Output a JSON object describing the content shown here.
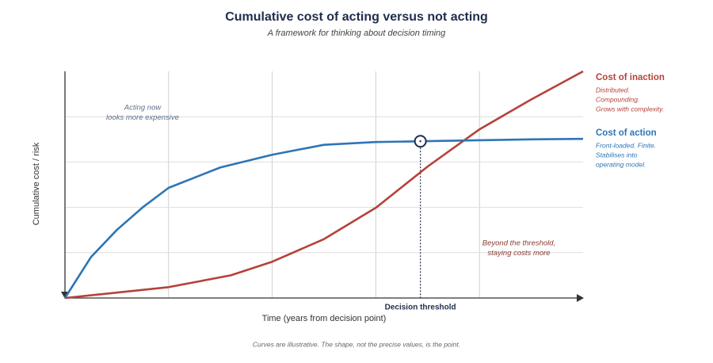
{
  "chart_data": {
    "type": "line",
    "title": "Cumulative cost of acting versus not acting",
    "subtitle": "A framework for thinking about decision timing",
    "xlabel": "Time (years from decision point)",
    "ylabel": "Cumulative cost / risk",
    "xlim": [
      0,
      5
    ],
    "ylim": [
      0,
      5
    ],
    "xticks": [
      1,
      2,
      3,
      4
    ],
    "yticks": [
      1,
      2,
      3,
      4
    ],
    "grid": true,
    "series": [
      {
        "name": "Cost of inaction",
        "color": "#b5423a",
        "description": [
          "Distributed.",
          "Compounding.",
          "Grows with complexity."
        ],
        "x": [
          0,
          1,
          1.6,
          2,
          2.5,
          3,
          3.5,
          4,
          4.5,
          5
        ],
        "values": [
          0,
          0.24,
          0.5,
          0.8,
          1.3,
          1.99,
          2.9,
          3.72,
          4.38,
          5
        ]
      },
      {
        "name": "Cost of action",
        "color": "#2e75b6",
        "description": [
          "Front-loaded. Finite.",
          "Stabilises into",
          "operating model."
        ],
        "x": [
          0,
          0.25,
          0.5,
          0.75,
          1,
          1.5,
          2,
          2.5,
          3,
          3.5,
          4,
          4.5,
          5
        ],
        "values": [
          0,
          0.9,
          1.5,
          2.0,
          2.43,
          2.88,
          3.16,
          3.38,
          3.44,
          3.46,
          3.48,
          3.5,
          3.51
        ]
      }
    ],
    "threshold": {
      "x": 3.43,
      "label": "Decision threshold"
    },
    "annotations": [
      {
        "lines": [
          "Acting now",
          "looks more expensive"
        ],
        "color": "#5a6f88"
      },
      {
        "lines": [
          "Beyond the threshold,",
          "staying costs more"
        ],
        "color": "#8a3a33"
      }
    ],
    "footnote": "Curves are illustrative. The shape, not the precise values, is the point."
  }
}
